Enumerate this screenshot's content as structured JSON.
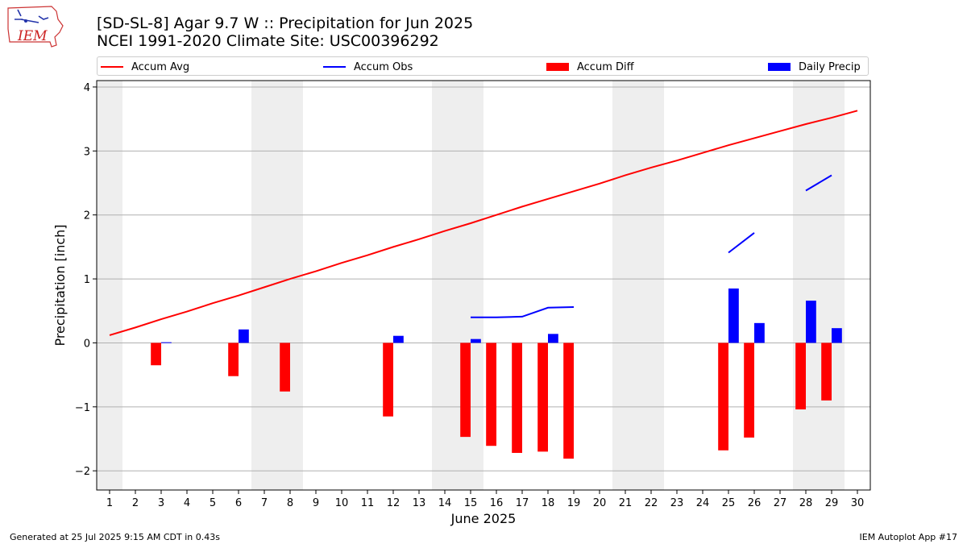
{
  "header": {
    "title_line1": "[SD-SL-8] Agar 9.7 W :: Precipitation for Jun 2025",
    "title_line2": "NCEI 1991-2020 Climate Site: USC00396292"
  },
  "logo": {
    "text": "IEM"
  },
  "legend": [
    {
      "label": "Accum Avg",
      "kind": "line",
      "color": "#ff0000"
    },
    {
      "label": "Accum Obs",
      "kind": "line",
      "color": "#0000ff"
    },
    {
      "label": "Accum Diff",
      "kind": "bar",
      "color": "#ff0000"
    },
    {
      "label": "Daily Precip",
      "kind": "bar",
      "color": "#0000ff"
    }
  ],
  "footer": {
    "left": "Generated at 25 Jul 2025 9:15 AM CDT in 0.43s",
    "right": "IEM Autoplot App #17"
  },
  "chart_data": {
    "type": "bar",
    "xlabel": "June 2025",
    "ylabel": "Precipitation [inch]",
    "xlim": [
      0.5,
      30.5
    ],
    "ylim": [
      -2.3,
      4.1
    ],
    "x_ticks": [
      1,
      2,
      3,
      4,
      5,
      6,
      7,
      8,
      9,
      10,
      11,
      12,
      13,
      14,
      15,
      16,
      17,
      18,
      19,
      20,
      21,
      22,
      23,
      24,
      25,
      26,
      27,
      28,
      29,
      30
    ],
    "y_ticks": [
      -2,
      -1,
      0,
      1,
      2,
      3,
      4
    ],
    "y_tick_labels": [
      "−2",
      "−1",
      "0",
      "1",
      "2",
      "3",
      "4"
    ],
    "grid": "horizontal",
    "weekend_shading": [
      [
        0.5,
        1.5
      ],
      [
        6.5,
        8.5
      ],
      [
        13.5,
        15.5
      ],
      [
        20.5,
        22.5
      ],
      [
        27.5,
        29.5
      ]
    ],
    "shading_color": "#eeeeee",
    "accum_avg": {
      "name": "Accum Avg",
      "color": "#ff0000",
      "x": [
        1,
        2,
        3,
        4,
        5,
        6,
        7,
        8,
        9,
        10,
        11,
        12,
        13,
        14,
        15,
        16,
        17,
        18,
        19,
        20,
        21,
        22,
        23,
        24,
        25,
        26,
        27,
        28,
        29,
        30
      ],
      "y": [
        0.12,
        0.24,
        0.37,
        0.49,
        0.62,
        0.74,
        0.87,
        1.0,
        1.12,
        1.25,
        1.37,
        1.5,
        1.62,
        1.75,
        1.87,
        2.0,
        2.13,
        2.25,
        2.37,
        2.49,
        2.62,
        2.74,
        2.85,
        2.97,
        3.09,
        3.2,
        3.31,
        3.42,
        3.52,
        3.63
      ]
    },
    "accum_obs": {
      "name": "Accum Obs",
      "color": "#0000ff",
      "segments": [
        {
          "x": [
            15,
            16,
            17,
            18,
            19
          ],
          "y": [
            0.4,
            0.4,
            0.41,
            0.55,
            0.56
          ]
        },
        {
          "x": [
            25,
            26
          ],
          "y": [
            1.41,
            1.72
          ]
        },
        {
          "x": [
            28,
            29
          ],
          "y": [
            2.38,
            2.62
          ]
        }
      ]
    },
    "accum_diff": {
      "name": "Accum Diff",
      "color": "#ff0000",
      "x": [
        3,
        6,
        8,
        12,
        15,
        16,
        17,
        18,
        19,
        25,
        26,
        28,
        29
      ],
      "y": [
        -0.35,
        -0.52,
        -0.76,
        -1.15,
        -1.47,
        -1.61,
        -1.72,
        -1.7,
        -1.81,
        -1.68,
        -1.48,
        -1.04,
        -0.9
      ]
    },
    "daily_precip": {
      "name": "Daily Precip",
      "color": "#0000ff",
      "x": [
        3,
        6,
        12,
        15,
        18,
        25,
        26,
        28,
        29
      ],
      "y": [
        0.01,
        0.21,
        0.11,
        0.06,
        0.14,
        0.85,
        0.31,
        0.66,
        0.23
      ]
    }
  }
}
